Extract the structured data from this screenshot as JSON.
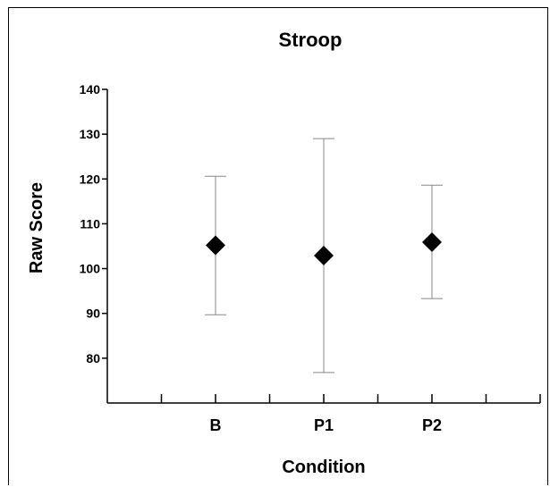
{
  "chart_data": {
    "type": "scatter",
    "title": "Stroop",
    "xlabel": "Condition",
    "ylabel": "Raw Score",
    "categories": [
      "B",
      "P1",
      "P2"
    ],
    "series": [
      {
        "marker": "diamond",
        "color": "#000000",
        "values": [
          105.2,
          102.9,
          105.9
        ],
        "error_low": [
          89.7,
          76.8,
          93.3
        ],
        "error_high": [
          120.6,
          129.0,
          118.6
        ]
      }
    ],
    "yticks": [
      80,
      90,
      100,
      110,
      120,
      130,
      140
    ],
    "ylim": [
      70,
      140
    ],
    "grid": false,
    "legend": "none"
  }
}
